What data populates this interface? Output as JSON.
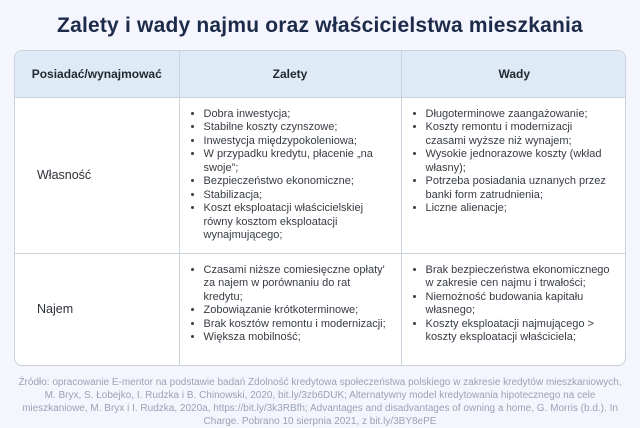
{
  "page": {
    "title": "Zalety i wady najmu oraz właścicielstwa mieszkania",
    "source_note": "Źródło: opracowanie E-mentor na podstawie badań Zdolność kredytowa społeczeństwa polskiego w zakresie kredytów mieszkaniowych, M. Bryx, S. Łobejko, I. Rudzka i B. Chinowski, 2020, bit.ly/3zb6DUK; Alternatywny model kredytowania hipotecznego na cele mieszkaniowe, M. Bryx i I. Rudzka, 2020a, https://bit.ly/3k3RBfh; Advantages and disadvantages of owning a home, G. Morris (b.d.). In Charge. Pobrano 10 sierpnia 2021, z bit.ly/3BY8ePE"
  },
  "table": {
    "headers": {
      "col1": "Posiadać/wynajmować",
      "col2": "Zalety",
      "col3": "Wady"
    },
    "rows": [
      {
        "label": "Własność",
        "zalety": [
          "Dobra inwestycja;",
          "Stabilne koszty czynszowe;",
          "Inwestycja międzypokoleniowa;",
          "W przypadku kredytu, płacenie „na swoje”;",
          "Bezpieczeństwo ekonomiczne;",
          "Stabilizacja;",
          "Koszt eksploatacji właścicielskiej równy kosztom eksploatacji wynajmującego;"
        ],
        "wady": [
          "Długoterminowe zaangażowanie;",
          "Koszty remontu i modernizacji czasami wyższe niż wynajem;",
          "Wysokie jednorazowe koszty (wkład własny);",
          "Potrzeba posiadania uznanych przez banki form zatrudnienia;",
          "Liczne alienacje;"
        ]
      },
      {
        "label": "Najem",
        "zalety": [
          "Czasami niższe comiesięczne opłaty' za najem w porównaniu do rat kredytu;",
          "Zobowiązanie krótkoterminowe;",
          "Brak kosztów remontu i modernizacji;",
          "Większa mobilność;"
        ],
        "wady": [
          "Brak bezpieczeństwa ekonomicznego w zakresie cen najmu i trwałości;",
          "Niemożność budowania kapitału własnego;",
          "Koszty eksploatacji najmującego > koszty eksploatacji właściciela;"
        ]
      }
    ]
  },
  "colors": {
    "page_background": "#f5f5fd",
    "table_background": "#ffffff",
    "header_background": "#deeaf5",
    "border": "#c9d2dd",
    "title_text": "#1c2b4a",
    "body_text": "#373c44",
    "source_text": "#9aa3b4"
  }
}
